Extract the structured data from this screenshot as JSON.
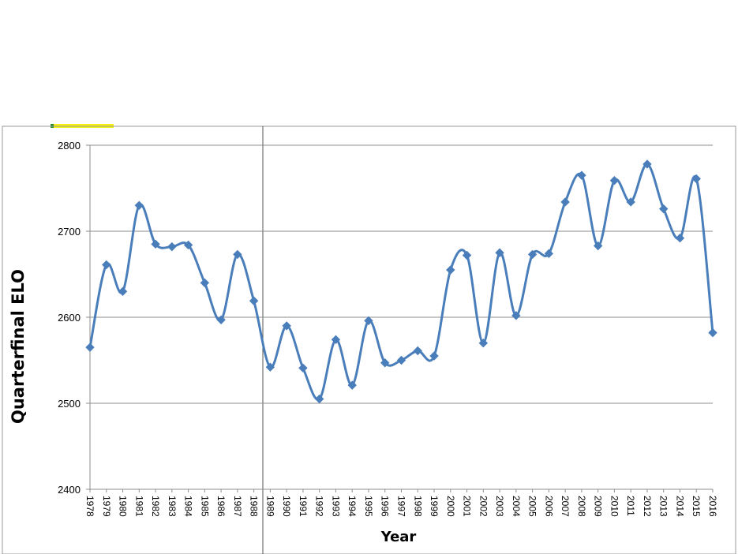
{
  "chart_data": {
    "type": "line",
    "title": "",
    "xlabel": "Year",
    "ylabel": "Quarterfinal ELO",
    "ylim": [
      2400,
      2800
    ],
    "yticks": [
      2400,
      2500,
      2600,
      2700,
      2800
    ],
    "grid": true,
    "series_color": "#4a7ebb",
    "x": [
      "1978",
      "1979",
      "1980",
      "1981",
      "1982",
      "1983",
      "1984",
      "1985",
      "1986",
      "1987",
      "1988",
      "1989",
      "1990",
      "1991",
      "1992",
      "1993",
      "1994",
      "1995",
      "1996",
      "1997",
      "1998",
      "1999",
      "2000",
      "2001",
      "2002",
      "2003",
      "2004",
      "2005",
      "2006",
      "2007",
      "2008",
      "2009",
      "2010",
      "2011",
      "2012",
      "2013",
      "2014",
      "2015",
      "2016"
    ],
    "series": [
      {
        "values": [
          2565,
          2661,
          2630,
          2730,
          2685,
          2682,
          2684,
          2640,
          2597,
          2673,
          2619,
          2542,
          2590,
          2541,
          2505,
          2574,
          2521,
          2596,
          2547,
          2550,
          2561,
          2555,
          2655,
          2672,
          2570,
          2675,
          2602,
          2673,
          2674,
          2734,
          2765,
          2683,
          2759,
          2734,
          2778,
          2726,
          2692,
          2761,
          2582
        ]
      }
    ]
  }
}
